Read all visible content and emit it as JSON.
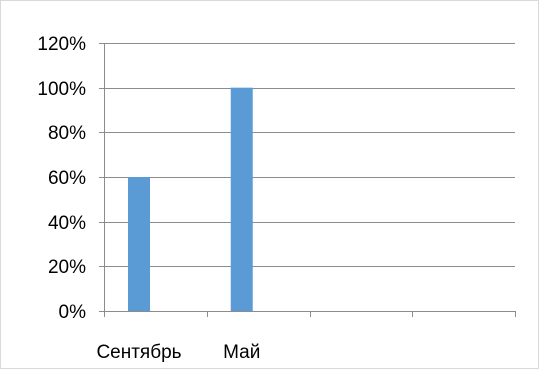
{
  "chart_data": {
    "type": "bar",
    "categories": [
      "Сентябрь",
      "Май",
      "",
      ""
    ],
    "values": [
      0.6,
      1.0,
      null,
      null
    ],
    "y_tick_labels": [
      "0%",
      "20%",
      "40%",
      "60%",
      "80%",
      "100%",
      "120%"
    ],
    "ylim": [
      0,
      1.2
    ],
    "y_step": 0.2,
    "grid": true,
    "legend": "none",
    "title": "",
    "xlabel": "",
    "ylabel": "",
    "colors": {
      "bar": "#5b9bd5",
      "grid": "#8c8c8c",
      "axis": "#8c8c8c",
      "frame": "#d9d9d9"
    }
  }
}
